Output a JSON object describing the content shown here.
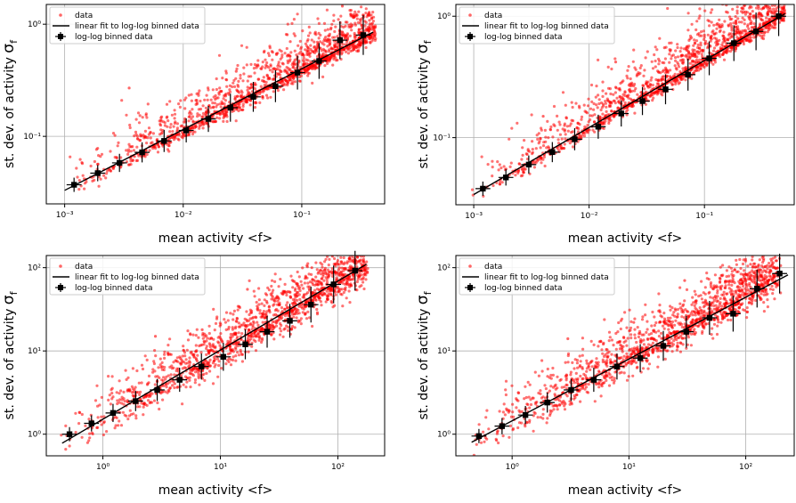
{
  "colors": {
    "data_points": "#ff0000",
    "fit_line": "#000000",
    "binned": "#000000",
    "grid": "#b0b0b0"
  },
  "chart_data": [
    {
      "type": "scatter",
      "xlabel": "mean activity <f>",
      "ylabel": "st. dev. of activity σ_f",
      "xscale": "log",
      "yscale": "log",
      "xlim": [
        0.0007,
        0.5
      ],
      "ylim": [
        0.025,
        1.5
      ],
      "xticks": [
        0.001,
        0.01,
        0.1
      ],
      "xtick_labels": [
        "10⁻³",
        "10⁻²",
        "10⁻¹"
      ],
      "yticks": [
        0.1,
        1
      ],
      "ytick_labels": [
        "10⁻¹",
        "10⁰"
      ],
      "grid": true,
      "legend_position": "top-left",
      "legend": [
        "data",
        "linear fit to log-log binned data",
        "log-log binned data"
      ],
      "fit_line": {
        "x": [
          0.001,
          0.4
        ],
        "y": [
          0.033,
          0.85
        ]
      },
      "binned": {
        "x": [
          0.0012,
          0.0019,
          0.0029,
          0.0045,
          0.0069,
          0.0106,
          0.0163,
          0.025,
          0.039,
          0.06,
          0.092,
          0.14,
          0.21,
          0.33
        ],
        "y": [
          0.037,
          0.047,
          0.058,
          0.072,
          0.091,
          0.113,
          0.143,
          0.18,
          0.225,
          0.28,
          0.37,
          0.47,
          0.72,
          0.8
        ]
      },
      "scatter": {
        "x_range": [
          0.00095,
          0.42
        ],
        "slope": 0.546,
        "spread_low": 0.08,
        "spread_high": 0.35,
        "outliers": [
          [
            0.0035,
            0.27
          ],
          [
            0.013,
            0.21
          ],
          [
            0.08,
            0.7
          ],
          [
            0.22,
            1.45
          ],
          [
            0.028,
            0.38
          ]
        ]
      }
    },
    {
      "type": "scatter",
      "xlabel": "mean activity <f>",
      "ylabel": "st. dev. of activity σ_f",
      "xscale": "log",
      "yscale": "log",
      "xlim": [
        0.0007,
        0.6
      ],
      "ylim": [
        0.028,
        1.25
      ],
      "xticks": [
        0.001,
        0.01,
        0.1
      ],
      "xtick_labels": [
        "10⁻³",
        "10⁻²",
        "10⁻¹"
      ],
      "yticks": [
        0.1,
        1
      ],
      "ytick_labels": [
        "10⁻¹",
        "10⁰"
      ],
      "grid": true,
      "legend_position": "top-left",
      "legend": [
        "data",
        "linear fit to log-log binned data",
        "log-log binned data"
      ],
      "fit_line": {
        "x": [
          0.001,
          0.5
        ],
        "y": [
          0.034,
          1.05
        ]
      },
      "binned": {
        "x": [
          0.0012,
          0.0019,
          0.003,
          0.0048,
          0.0075,
          0.012,
          0.019,
          0.029,
          0.046,
          0.072,
          0.11,
          0.18,
          0.28,
          0.44
        ],
        "y": [
          0.038,
          0.047,
          0.06,
          0.076,
          0.097,
          0.123,
          0.158,
          0.2,
          0.25,
          0.33,
          0.45,
          0.6,
          0.75,
          1.0
        ]
      },
      "scatter": {
        "x_range": [
          0.0009,
          0.5
        ],
        "slope": 0.56,
        "spread_low": 0.07,
        "spread_high": 0.35,
        "outliers": [
          [
            0.017,
            0.42
          ],
          [
            0.045,
            0.55
          ],
          [
            0.1,
            0.7
          ],
          [
            0.004,
            0.15
          ]
        ]
      }
    },
    {
      "type": "scatter",
      "xlabel": "mean activity <f>",
      "ylabel": "st. dev. of activity σ_f",
      "xscale": "log",
      "yscale": "log",
      "xlim": [
        0.33,
        250
      ],
      "ylim": [
        0.55,
        140
      ],
      "xticks": [
        1,
        10,
        100
      ],
      "xtick_labels": [
        "10⁰",
        "10¹",
        "10²"
      ],
      "yticks": [
        1,
        10,
        100
      ],
      "ytick_labels": [
        "10⁰",
        "10¹",
        "10²"
      ],
      "grid": true,
      "legend_position": "top-left",
      "legend": [
        "data",
        "linear fit to log-log binned data",
        "log-log binned data"
      ],
      "fit_line": {
        "x": [
          0.45,
          175
        ],
        "y": [
          0.78,
          110
        ]
      },
      "binned": {
        "x": [
          0.52,
          0.8,
          1.22,
          1.9,
          2.9,
          4.5,
          6.9,
          10.6,
          16.3,
          25,
          39,
          59,
          92,
          140
        ],
        "y": [
          1.0,
          1.35,
          1.8,
          2.5,
          3.4,
          4.5,
          6.5,
          8.5,
          12,
          17,
          23,
          36,
          63,
          92
        ]
      },
      "scatter": {
        "x_range": [
          0.42,
          180
        ],
        "slope": 0.83,
        "spread_low": 0.2,
        "spread_high": 0.45,
        "outliers": [
          [
            2.8,
            15
          ],
          [
            7,
            18
          ],
          [
            17,
            55
          ],
          [
            60,
            100
          ],
          [
            100,
            110
          ]
        ]
      }
    },
    {
      "type": "scatter",
      "xlabel": "mean activity <f>",
      "ylabel": "st. dev. of activity σ_f",
      "xscale": "log",
      "yscale": "log",
      "xlim": [
        0.33,
        260
      ],
      "ylim": [
        0.55,
        140
      ],
      "xticks": [
        1,
        10,
        100
      ],
      "xtick_labels": [
        "10⁰",
        "10¹",
        "10²"
      ],
      "yticks": [
        1,
        10,
        100
      ],
      "ytick_labels": [
        "10⁰",
        "10¹",
        "10²"
      ],
      "grid": true,
      "legend_position": "top-left",
      "legend": [
        "data",
        "linear fit to log-log binned data",
        "log-log binned data"
      ],
      "fit_line": {
        "x": [
          0.45,
          230
        ],
        "y": [
          0.8,
          82
        ]
      },
      "binned": {
        "x": [
          0.52,
          0.82,
          1.3,
          2.0,
          3.2,
          5.0,
          7.9,
          12.5,
          19.7,
          31,
          49,
          78,
          125,
          195
        ],
        "y": [
          0.95,
          1.25,
          1.7,
          2.4,
          3.4,
          4.5,
          6.5,
          8.2,
          11.5,
          17,
          25,
          28,
          56,
          85
        ]
      },
      "scatter": {
        "x_range": [
          0.42,
          200
        ],
        "slope": 0.77,
        "spread_low": 0.2,
        "spread_high": 0.45,
        "outliers": [
          [
            3,
            14
          ],
          [
            11,
            22
          ],
          [
            30,
            70
          ],
          [
            60,
            75
          ],
          [
            110,
            110
          ]
        ]
      }
    }
  ]
}
